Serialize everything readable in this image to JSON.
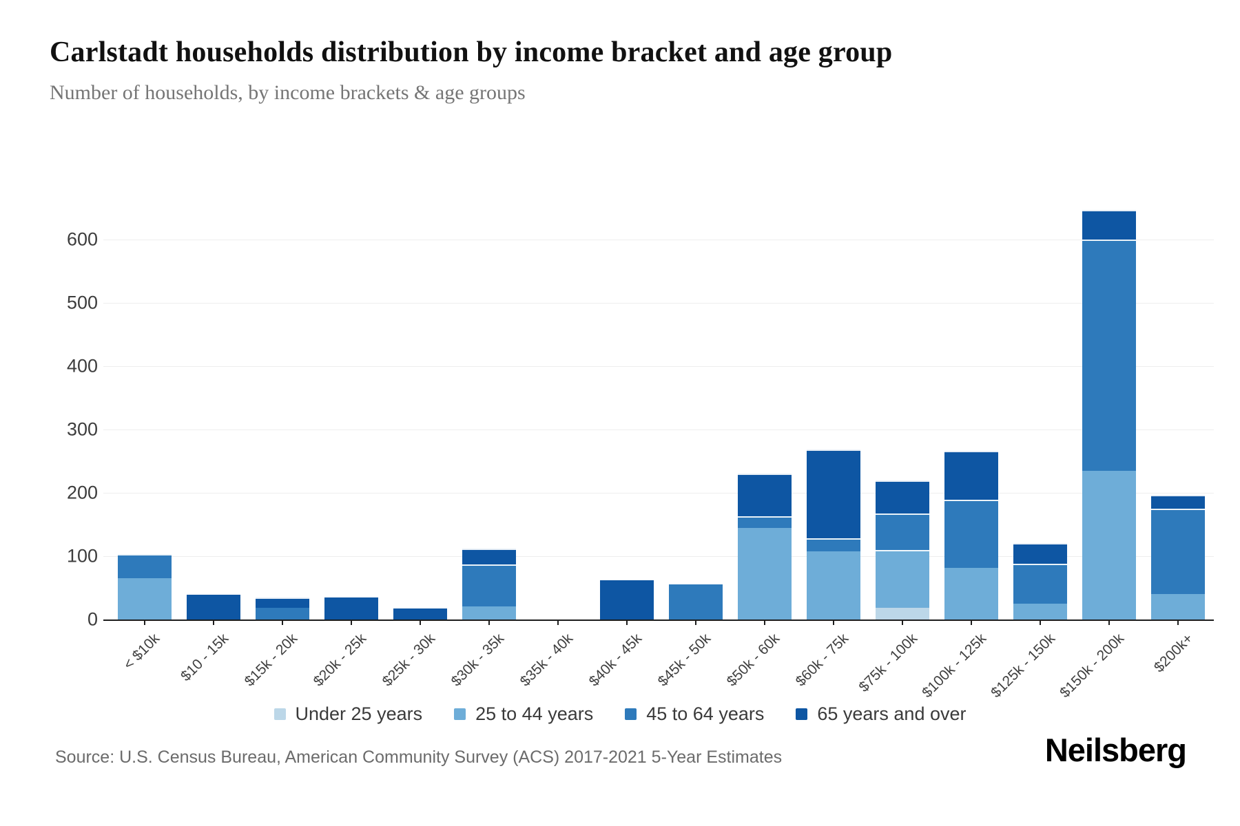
{
  "header": {
    "title": "Carlstadt households distribution by income bracket and age group",
    "subtitle": "Number of households, by income brackets & age groups"
  },
  "footer": {
    "source": "Source: U.S. Census Bureau, American Community Survey (ACS) 2017-2021 5-Year Estimates",
    "brand": "Neilsberg"
  },
  "chart_data": {
    "type": "bar",
    "stacked": true,
    "title": "Carlstadt households distribution by income bracket and age group",
    "xlabel": "",
    "ylabel": "Number of households",
    "ylim": [
      0,
      700
    ],
    "yticks": [
      0,
      100,
      200,
      300,
      400,
      500,
      600
    ],
    "grid": "horizontal",
    "legend_position": "bottom",
    "categories": [
      "< $10k",
      "$10 - 15k",
      "$15k - 20k",
      "$20k - 25k",
      "$25k - 30k",
      "$30k - 35k",
      "$35k - 40k",
      "$40k - 45k",
      "$45k - 50k",
      "$50k - 60k",
      "$60k - 75k",
      "$75k - 100k",
      "$100k - 125k",
      "$125k - 150k",
      "$150k - 200k",
      "$200k+"
    ],
    "series": [
      {
        "name": "Under 25 years",
        "color": "#bcd7e8",
        "values": [
          0,
          0,
          0,
          0,
          0,
          0,
          0,
          0,
          0,
          0,
          0,
          18,
          0,
          0,
          0,
          0
        ]
      },
      {
        "name": "25 to 44 years",
        "color": "#6eadd8",
        "values": [
          65,
          0,
          0,
          0,
          0,
          21,
          0,
          0,
          0,
          145,
          108,
          92,
          82,
          25,
          235,
          40
        ]
      },
      {
        "name": "45 to 64 years",
        "color": "#2e7abb",
        "values": [
          38,
          0,
          18,
          0,
          0,
          66,
          0,
          0,
          55,
          18,
          20,
          57,
          107,
          63,
          365,
          135
        ]
      },
      {
        "name": "65 years and over",
        "color": "#0e56a3",
        "values": [
          0,
          39,
          17,
          35,
          17,
          25,
          0,
          62,
          0,
          67,
          140,
          53,
          77,
          33,
          47,
          22
        ]
      }
    ],
    "totals": [
      103,
      39,
      35,
      35,
      17,
      112,
      0,
      62,
      55,
      230,
      268,
      220,
      266,
      121,
      647,
      197
    ]
  }
}
